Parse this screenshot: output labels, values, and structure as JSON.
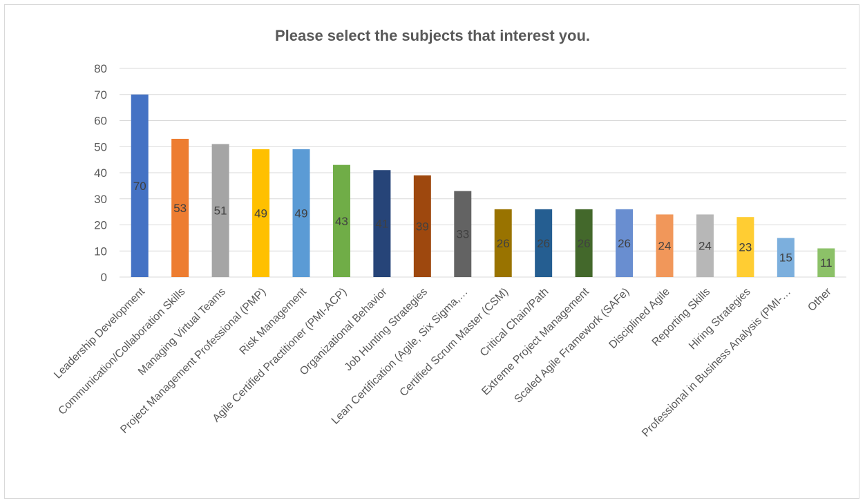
{
  "chart_data": {
    "type": "bar",
    "title": "Please select the subjects that interest you.",
    "xlabel": "",
    "ylabel": "",
    "ylim": [
      0,
      80
    ],
    "ytick_step": 10,
    "grid": true,
    "legend": "none",
    "categories": [
      "Leadership Development",
      "Communication/Collaboration Skills",
      "Managing Virtual Teams",
      "Project Management Professional (PMP)",
      "Risk Management",
      "Agile Certified Practitioner (PMI-ACP)",
      "Organizational Behavior",
      "Job Hunting Strategies",
      "Lean Certification (Agile, Six Sigma,…",
      "Certified Scrum Master (CSM)",
      "Critical Chain/Path",
      "Extreme Project Management",
      "Scaled Agile Framework (SAFe)",
      "Disciplined Agile",
      "Reporting Skills",
      "Hiring Strategies",
      "Professional in Business Analysis (PMI-…",
      "Other"
    ],
    "values": [
      70,
      53,
      51,
      49,
      49,
      43,
      41,
      39,
      33,
      26,
      26,
      26,
      26,
      24,
      24,
      23,
      15,
      11
    ],
    "colors": [
      "#4472c4",
      "#ed7d31",
      "#a5a5a5",
      "#ffc000",
      "#5b9bd5",
      "#70ad47",
      "#264478",
      "#9e480e",
      "#636363",
      "#997300",
      "#255e91",
      "#43682b",
      "#698ed0",
      "#f1975a",
      "#b7b7b7",
      "#ffcd33",
      "#7cafdd",
      "#8cc168"
    ]
  }
}
